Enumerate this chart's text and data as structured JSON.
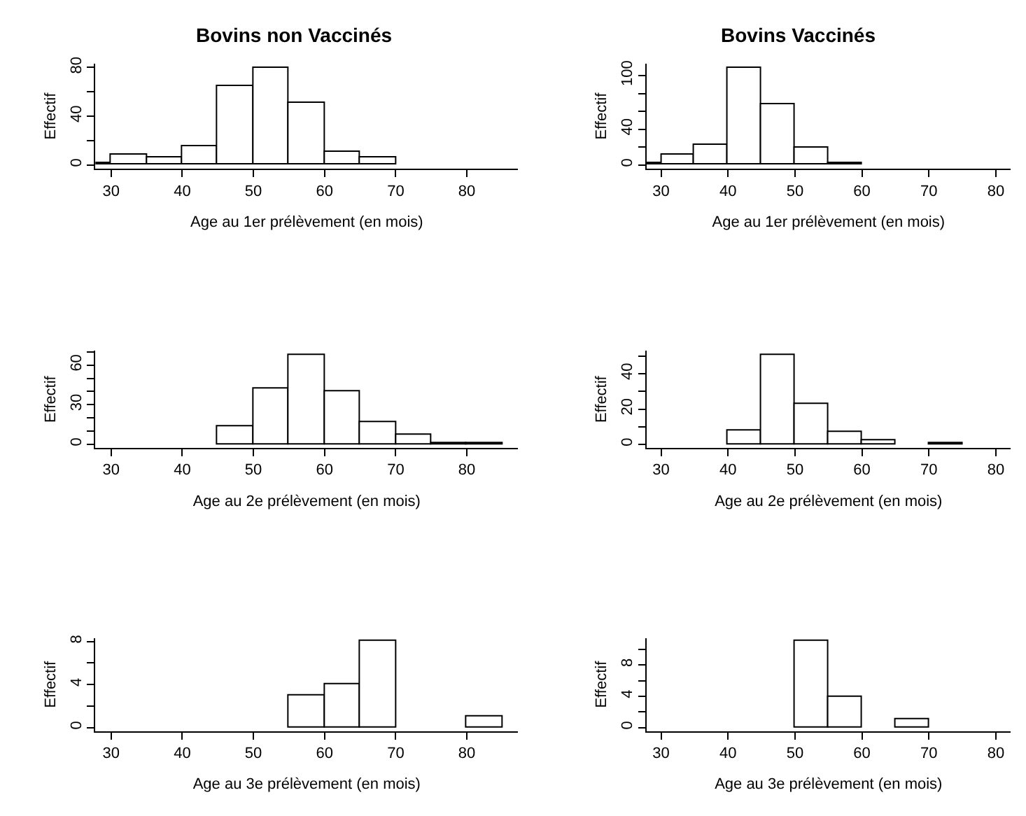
{
  "chart_data": [
    {
      "type": "histogram",
      "title": "Bovins non Vaccinés",
      "xlabel": "Age au 1er prélèvement (en mois)",
      "ylabel": "Effectif",
      "bins": [
        25,
        30,
        35,
        40,
        45,
        50,
        55,
        60,
        65,
        70,
        75
      ],
      "values": [
        2,
        9,
        6,
        15,
        65,
        80,
        51,
        11,
        6,
        0
      ],
      "color": "#ffffff",
      "xlim": [
        27.8,
        87.2
      ],
      "xticks": [
        30,
        40,
        50,
        60,
        70,
        80
      ],
      "ylim": [
        -3.2,
        83.2
      ],
      "yticks": [
        0,
        {
          "value": 20,
          "label": null
        },
        40,
        {
          "value": 60,
          "label": null
        },
        80
      ]
    },
    {
      "type": "histogram",
      "title": "Bovins Vaccinés",
      "xlabel": "Age au 1er prélèvement (en mois)",
      "ylabel": "Effectif",
      "bins": [
        25,
        30,
        35,
        40,
        45,
        50,
        55,
        60,
        65
      ],
      "values": [
        2,
        11,
        23,
        109,
        68,
        19,
        2,
        0
      ],
      "color": "#ffffff",
      "xlim": [
        27.8,
        82.2
      ],
      "xticks": [
        30,
        40,
        50,
        60,
        70,
        80
      ],
      "ylim": [
        -4.4,
        113.4
      ],
      "yticks": [
        0,
        {
          "value": 20,
          "label": null
        },
        40,
        {
          "value": 60,
          "label": null
        },
        {
          "value": 80,
          "label": null
        },
        100
      ]
    },
    {
      "type": "histogram",
      "xlabel": "Age au 2e prélèvement (en mois)",
      "ylabel": "Effectif",
      "bins": [
        45,
        50,
        55,
        60,
        65,
        70,
        75,
        80,
        85
      ],
      "values": [
        13,
        42,
        68,
        40,
        17,
        7,
        1,
        1
      ],
      "color": "#ffffff",
      "xlim": [
        27.8,
        87.2
      ],
      "xticks": [
        30,
        40,
        50,
        60,
        70,
        80
      ],
      "ylim": [
        -2.8,
        70.8
      ],
      "yticks": [
        0,
        {
          "value": 10,
          "label": null
        },
        {
          "value": 20,
          "label": null
        },
        30,
        {
          "value": 40,
          "label": null
        },
        {
          "value": 50,
          "label": null
        },
        60,
        {
          "value": 70,
          "label": null
        }
      ]
    },
    {
      "type": "histogram",
      "xlabel": "Age au 2e prélèvement (en mois)",
      "ylabel": "Effectif",
      "bins": [
        40,
        45,
        50,
        55,
        60,
        65,
        70,
        75
      ],
      "values": [
        8,
        51,
        23,
        7,
        2,
        0,
        1
      ],
      "color": "#ffffff",
      "xlim": [
        27.8,
        82.2
      ],
      "xticks": [
        30,
        40,
        50,
        60,
        70,
        80
      ],
      "ylim": [
        -2.0,
        53.0
      ],
      "yticks": [
        0,
        {
          "value": 10,
          "label": null
        },
        20,
        {
          "value": 30,
          "label": null
        },
        40,
        {
          "value": 50,
          "label": null
        }
      ]
    },
    {
      "type": "histogram",
      "xlabel": "Age au 3e prélèvement (en mois)",
      "ylabel": "Effectif",
      "bins": [
        55,
        60,
        65,
        70,
        75,
        80,
        85
      ],
      "values": [
        3,
        4,
        8,
        0,
        0,
        1
      ],
      "color": "#ffffff",
      "xlim": [
        27.8,
        87.2
      ],
      "xticks": [
        30,
        40,
        50,
        60,
        70,
        80
      ],
      "ylim": [
        -0.32,
        8.32
      ],
      "yticks": [
        0,
        {
          "value": 2,
          "label": null
        },
        4,
        {
          "value": 6,
          "label": null
        },
        8
      ]
    },
    {
      "type": "histogram",
      "xlabel": "Age au 3e prélèvement (en mois)",
      "ylabel": "Effectif",
      "bins": [
        50,
        55,
        60,
        65,
        70
      ],
      "values": [
        11,
        4,
        0,
        1
      ],
      "color": "#ffffff",
      "xlim": [
        27.8,
        82.2
      ],
      "xticks": [
        30,
        40,
        50,
        60,
        70,
        80
      ],
      "ylim": [
        -0.44,
        11.44
      ],
      "yticks": [
        0,
        {
          "value": 2,
          "label": null
        },
        4,
        {
          "value": 6,
          "label": null
        },
        8,
        {
          "value": 10,
          "label": null
        }
      ]
    }
  ]
}
